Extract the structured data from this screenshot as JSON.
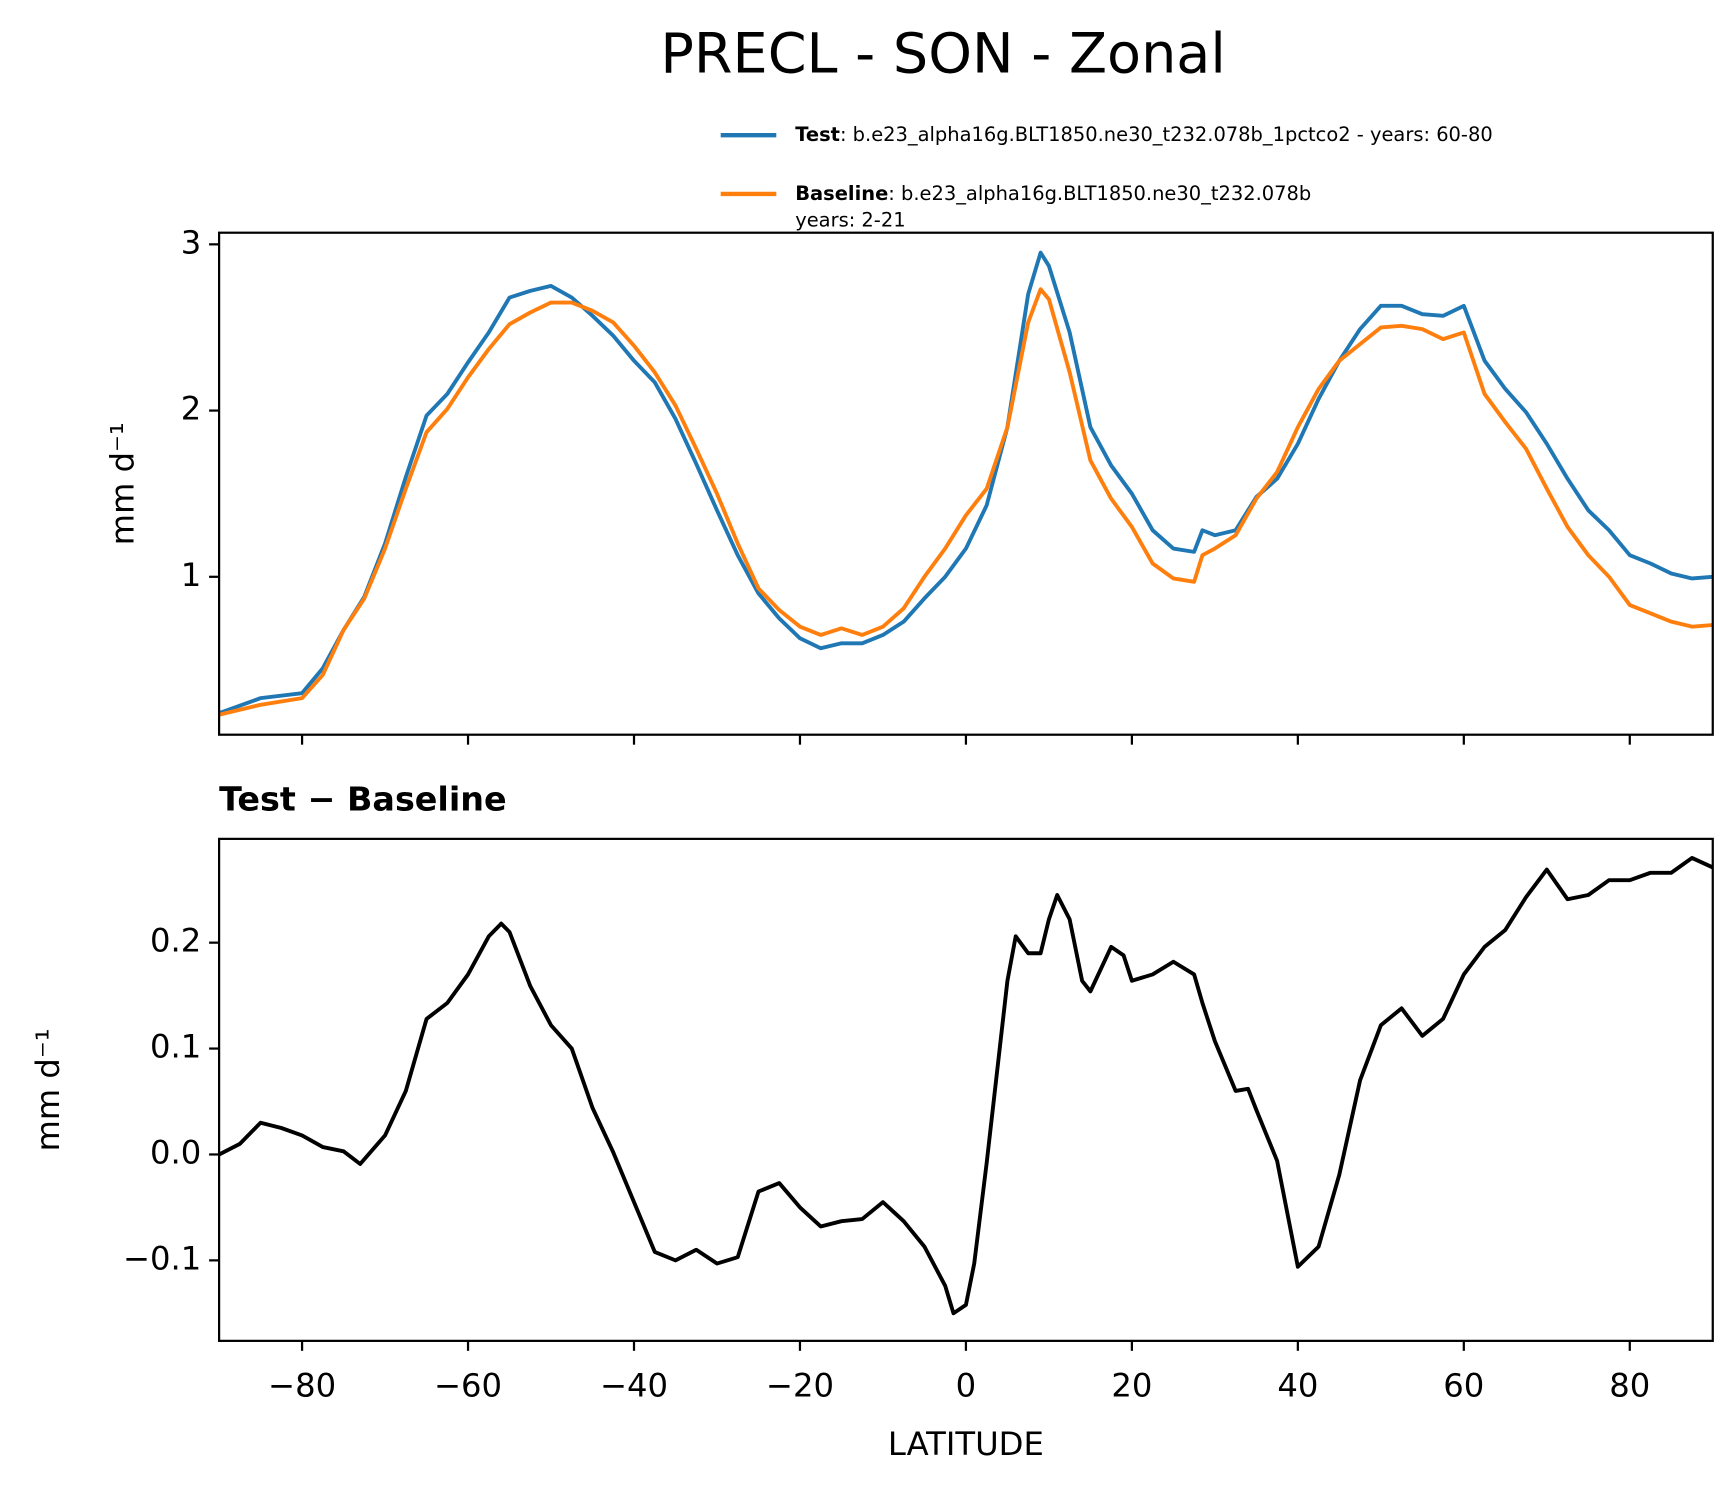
{
  "chart_data": [
    {
      "type": "line",
      "title": "PRECL - SON - Zonal",
      "ylabel": "mm d⁻¹",
      "x": [
        -90,
        -85,
        -80,
        -77.5,
        -75,
        -72.5,
        -70,
        -67.5,
        -65,
        -62.5,
        -60,
        -57.5,
        -55,
        -52.5,
        -50,
        -47.5,
        -45,
        -42.5,
        -40,
        -37.5,
        -35,
        -32.5,
        -30,
        -27.5,
        -25,
        -22.5,
        -20,
        -17.5,
        -15,
        -12.5,
        -10,
        -7.5,
        -5,
        -2.5,
        0,
        2.5,
        5,
        7.5,
        9,
        10,
        12.5,
        15,
        17.5,
        20,
        22.5,
        25,
        27.5,
        28.5,
        30,
        32.5,
        35,
        37.5,
        40,
        42.5,
        45,
        47.5,
        50,
        52.5,
        55,
        57.5,
        60,
        62.5,
        65,
        67.5,
        70,
        72.5,
        75,
        77.5,
        80,
        82.5,
        85,
        87.5,
        90
      ],
      "series": [
        {
          "name": "Test",
          "legend_lines": [
            ": b.e23_alpha16g.BLT1850.ne30_t232.078b_1pctco2 - years: 60-80"
          ],
          "color": "#1f77b4",
          "values": [
            0.18,
            0.27,
            0.3,
            0.45,
            0.68,
            0.88,
            1.2,
            1.6,
            1.97,
            2.1,
            2.29,
            2.47,
            2.68,
            2.72,
            2.75,
            2.68,
            2.57,
            2.45,
            2.3,
            2.17,
            1.95,
            1.68,
            1.4,
            1.13,
            0.9,
            0.75,
            0.63,
            0.57,
            0.6,
            0.6,
            0.65,
            0.73,
            0.87,
            1.0,
            1.17,
            1.43,
            1.9,
            2.7,
            2.95,
            2.87,
            2.47,
            1.9,
            1.67,
            1.5,
            1.28,
            1.17,
            1.15,
            1.28,
            1.25,
            1.28,
            1.48,
            1.59,
            1.8,
            2.07,
            2.3,
            2.49,
            2.63,
            2.63,
            2.58,
            2.57,
            2.63,
            2.3,
            2.13,
            1.99,
            1.8,
            1.59,
            1.4,
            1.28,
            1.13,
            1.08,
            1.02,
            0.99,
            1.0
          ]
        },
        {
          "name": "Baseline",
          "legend_lines": [
            ": b.e23_alpha16g.BLT1850.ne30_t232.078b",
            "years: 2-21"
          ],
          "color": "#ff7f0e",
          "values": [
            0.17,
            0.23,
            0.27,
            0.41,
            0.68,
            0.87,
            1.17,
            1.53,
            1.87,
            2.01,
            2.2,
            2.37,
            2.52,
            2.59,
            2.65,
            2.65,
            2.6,
            2.53,
            2.39,
            2.23,
            2.03,
            1.77,
            1.5,
            1.2,
            0.93,
            0.8,
            0.7,
            0.65,
            0.69,
            0.65,
            0.7,
            0.81,
            1.0,
            1.17,
            1.37,
            1.53,
            1.9,
            2.53,
            2.73,
            2.67,
            2.23,
            1.7,
            1.47,
            1.3,
            1.08,
            0.99,
            0.97,
            1.13,
            1.17,
            1.25,
            1.47,
            1.63,
            1.9,
            2.13,
            2.3,
            2.4,
            2.5,
            2.51,
            2.49,
            2.43,
            2.47,
            2.1,
            1.93,
            1.77,
            1.53,
            1.3,
            1.13,
            1.0,
            0.83,
            0.78,
            0.73,
            0.7,
            0.71
          ]
        }
      ],
      "xlim": [
        -90,
        90
      ],
      "xticks": [
        -80,
        -60,
        -40,
        -20,
        0,
        20,
        40,
        60,
        80
      ],
      "ylim": [
        0.05,
        3.07
      ],
      "yticks": [
        1,
        2,
        3
      ],
      "legend": "upper right"
    },
    {
      "type": "line",
      "title": "Test − Baseline",
      "ylabel": "mm d⁻¹",
      "xlabel": "LATITUDE",
      "x": [
        -90,
        -87.5,
        -85,
        -82.5,
        -80,
        -77.5,
        -75,
        -73,
        -70,
        -67.5,
        -65,
        -62.5,
        -60,
        -57.5,
        -56,
        -55,
        -52.5,
        -50,
        -47.5,
        -45,
        -42.5,
        -40,
        -37.5,
        -35,
        -32.5,
        -30,
        -27.5,
        -25,
        -22.5,
        -20,
        -17.5,
        -15,
        -12.5,
        -10,
        -7.5,
        -5,
        -2.5,
        -1.5,
        0,
        1,
        2.5,
        5,
        6,
        7.5,
        9,
        10,
        11,
        12.5,
        14,
        15,
        17.5,
        19,
        20,
        22.5,
        25,
        27.5,
        28.5,
        30,
        32.5,
        34,
        35,
        37.5,
        40,
        42.5,
        45,
        47.5,
        50,
        52.5,
        55,
        57.5,
        60,
        62.5,
        65,
        67.5,
        70,
        72.5,
        75,
        77.5,
        80,
        82.5,
        85,
        87.5,
        90
      ],
      "series": [
        {
          "name": "Test − Baseline",
          "color": "#000000",
          "values": [
            0.0,
            0.01,
            0.03,
            0.025,
            0.018,
            0.007,
            0.003,
            -0.009,
            0.018,
            0.06,
            0.128,
            0.143,
            0.17,
            0.206,
            0.218,
            0.21,
            0.159,
            0.122,
            0.1,
            0.044,
            0.002,
            -0.045,
            -0.092,
            -0.1,
            -0.09,
            -0.103,
            -0.097,
            -0.035,
            -0.027,
            -0.05,
            -0.068,
            -0.063,
            -0.061,
            -0.045,
            -0.063,
            -0.087,
            -0.124,
            -0.15,
            -0.142,
            -0.103,
            -0.008,
            0.164,
            0.206,
            0.19,
            0.19,
            0.222,
            0.245,
            0.222,
            0.164,
            0.154,
            0.196,
            0.188,
            0.164,
            0.17,
            0.182,
            0.17,
            0.143,
            0.107,
            0.06,
            0.062,
            0.042,
            -0.006,
            -0.106,
            -0.087,
            -0.019,
            0.07,
            0.122,
            0.138,
            0.112,
            0.128,
            0.17,
            0.196,
            0.212,
            0.243,
            0.269,
            0.241,
            0.245,
            0.259,
            0.259,
            0.266,
            0.266,
            0.28,
            0.271
          ]
        }
      ],
      "xlim": [
        -90,
        90
      ],
      "xticks": [
        {
          "value": -80,
          "label": "−80"
        },
        {
          "value": -60,
          "label": "−60"
        },
        {
          "value": -40,
          "label": "−40"
        },
        {
          "value": -20,
          "label": "−20"
        },
        0,
        20,
        40,
        60,
        80
      ],
      "ylim": [
        -0.176,
        0.298
      ],
      "yticks": [
        {
          "value": -0.1,
          "label": "−0.1"
        },
        {
          "value": 0,
          "label": "0.0"
        },
        0.1,
        0.2
      ]
    }
  ]
}
